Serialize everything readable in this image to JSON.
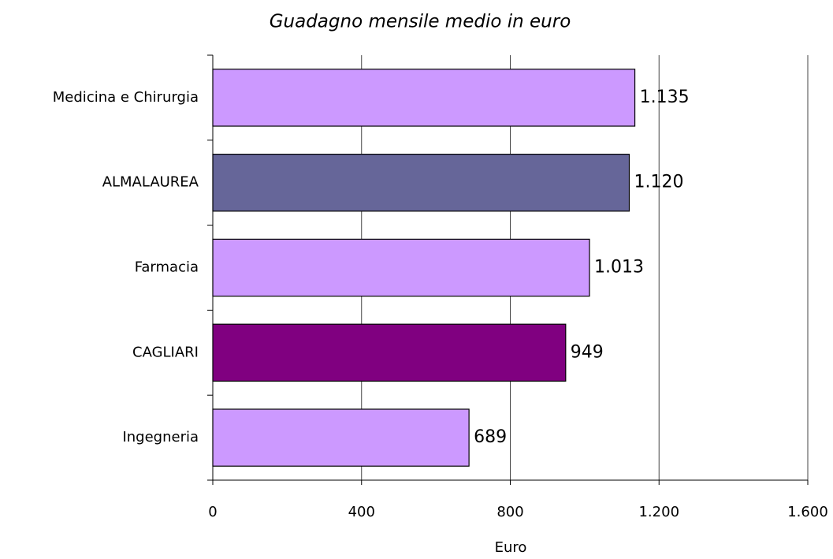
{
  "chart_data": {
    "type": "bar",
    "orientation": "horizontal",
    "title": "Guadagno mensile medio in euro",
    "x_label": "Euro",
    "categories": [
      "Medicina e Chirurgia",
      "ALMALAUREA",
      "Farmacia",
      "CAGLIARI",
      "Ingegneria"
    ],
    "values": [
      1135,
      1120,
      1013,
      949,
      689
    ],
    "value_labels": [
      "1.135",
      "1.120",
      "1.013",
      "949",
      "689"
    ],
    "colors": [
      "#cc99ff",
      "#666699",
      "#cc99ff",
      "#800080",
      "#cc99ff"
    ],
    "xlim": [
      0,
      1600
    ],
    "xticks": [
      0,
      400,
      800,
      {
        "value": 1200,
        "label": "1.200"
      },
      {
        "value": 1600,
        "label": "1.600"
      }
    ],
    "grid": true
  }
}
